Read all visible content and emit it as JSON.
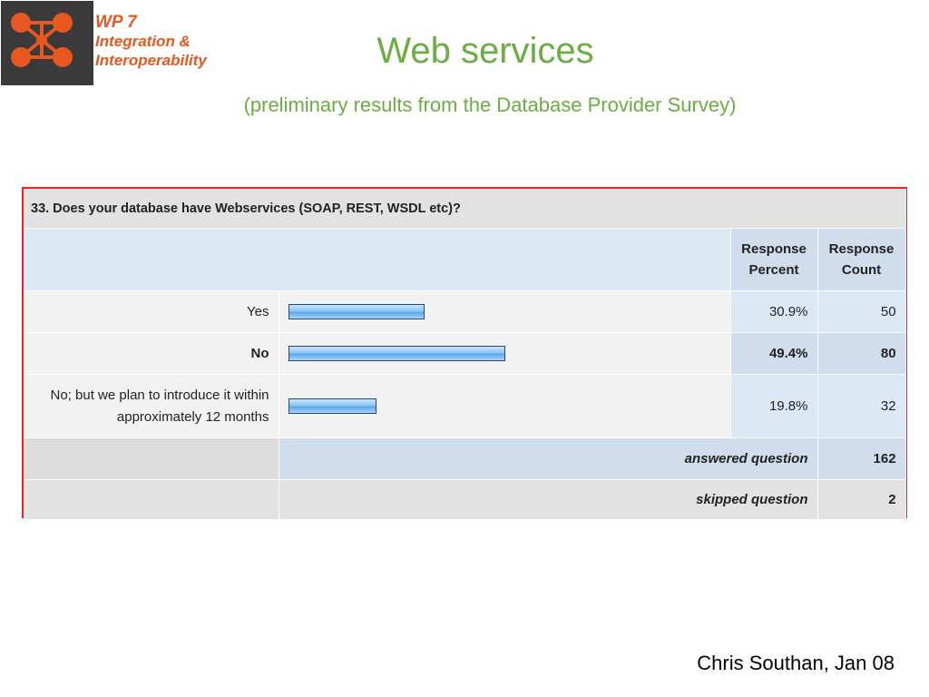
{
  "logo": {
    "icon": "network-nodes-logo",
    "bg_color": "#3a3a3a",
    "node_color": "#e8571f"
  },
  "brand": {
    "line1": "WP 7",
    "line2": "Integration &",
    "line3": "Interoperability",
    "color": "#e8571f"
  },
  "title": "Web services",
  "subtitle": "(preliminary results from the Database Provider Survey)",
  "survey": {
    "question": "33. Does your database have Webservices (SOAP, REST, WSDL etc)?",
    "col_percent": [
      "Response",
      "Percent"
    ],
    "col_count": [
      "Response",
      "Count"
    ],
    "answers": [
      {
        "label": "Yes",
        "percent": "30.9%",
        "count": "50",
        "fraction": 0.309,
        "bold": false
      },
      {
        "label": "No",
        "percent": "49.4%",
        "count": "80",
        "fraction": 0.494,
        "bold": true
      },
      {
        "label_lines": [
          "No; but we plan to introduce it within",
          "approximately 12 months"
        ],
        "percent": "19.8%",
        "count": "32",
        "fraction": 0.198,
        "bold": false
      }
    ],
    "answered_label": "answered question",
    "answered_count": "162",
    "skipped_label": "skipped question",
    "skipped_count": "2",
    "border_color": "#e8232a"
  },
  "author": "Chris Southan, Jan 08"
}
